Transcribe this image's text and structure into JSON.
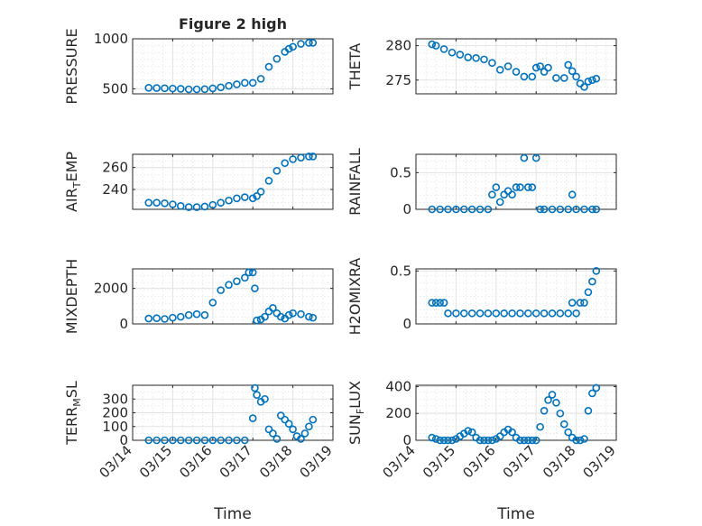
{
  "chart_data": [
    {
      "type": "scatter",
      "title": "Figure 2 high",
      "ylabel": "PRESSURE",
      "xlabel": "",
      "xlim": [
        0,
        5
      ],
      "ylim": [
        450,
        1000
      ],
      "yticks": [
        {
          "v": 500,
          "label": "500"
        },
        {
          "v": 1000,
          "label": "1000"
        }
      ],
      "xticks": [
        {
          "v": 0,
          "label": "03/14"
        },
        {
          "v": 1,
          "label": "03/15"
        },
        {
          "v": 2,
          "label": "03/16"
        },
        {
          "v": 3,
          "label": "03/17"
        },
        {
          "v": 4,
          "label": "03/18"
        },
        {
          "v": 5,
          "label": "03/19"
        }
      ],
      "grid": true,
      "marker_color": "#0072BD",
      "x": [
        0.4,
        0.6,
        0.8,
        1.0,
        1.2,
        1.4,
        1.6,
        1.8,
        2.0,
        2.2,
        2.4,
        2.6,
        2.8,
        3.0,
        3.2,
        3.4,
        3.6,
        3.8,
        3.9,
        4.0,
        4.2,
        4.4,
        4.5
      ],
      "y": [
        510,
        508,
        506,
        503,
        500,
        495,
        495,
        497,
        505,
        515,
        530,
        545,
        560,
        560,
        600,
        720,
        800,
        870,
        900,
        920,
        950,
        960,
        960
      ]
    },
    {
      "type": "scatter",
      "title": "",
      "ylabel": "THETA",
      "xlabel": "",
      "xlim": [
        0,
        5
      ],
      "ylim": [
        273,
        281
      ],
      "yticks": [
        {
          "v": 275,
          "label": "275"
        },
        {
          "v": 280,
          "label": "280"
        }
      ],
      "xticks": [
        {
          "v": 0,
          "label": "03/14"
        },
        {
          "v": 1,
          "label": "03/15"
        },
        {
          "v": 2,
          "label": "03/16"
        },
        {
          "v": 3,
          "label": "03/17"
        },
        {
          "v": 4,
          "label": "03/18"
        },
        {
          "v": 5,
          "label": "03/19"
        }
      ],
      "grid": true,
      "marker_color": "#0072BD",
      "x": [
        0.4,
        0.5,
        0.7,
        0.9,
        1.1,
        1.3,
        1.5,
        1.7,
        1.9,
        2.1,
        2.3,
        2.5,
        2.7,
        2.9,
        3.0,
        3.1,
        3.2,
        3.3,
        3.5,
        3.7,
        3.8,
        3.9,
        4.0,
        4.1,
        4.2,
        4.3,
        4.4,
        4.5
      ],
      "y": [
        280.2,
        280,
        279.5,
        279,
        278.7,
        278.3,
        278.2,
        278,
        277.5,
        276.5,
        277,
        276.2,
        275.5,
        275.5,
        276.8,
        277,
        276.2,
        276.8,
        275.3,
        275.3,
        277.2,
        276.3,
        275.5,
        274.5,
        274,
        274.8,
        275,
        275.2
      ]
    },
    {
      "type": "scatter",
      "title": "",
      "ylabel": "AIR_TEMP",
      "xlabel": "",
      "xlim": [
        0,
        5
      ],
      "ylim": [
        222,
        272
      ],
      "yticks": [
        {
          "v": 240,
          "label": "240"
        },
        {
          "v": 260,
          "label": "260"
        }
      ],
      "xticks": [
        {
          "v": 0,
          "label": "03/14"
        },
        {
          "v": 1,
          "label": "03/15"
        },
        {
          "v": 2,
          "label": "03/16"
        },
        {
          "v": 3,
          "label": "03/17"
        },
        {
          "v": 4,
          "label": "03/18"
        },
        {
          "v": 5,
          "label": "03/19"
        }
      ],
      "grid": true,
      "marker_color": "#0072BD",
      "x": [
        0.4,
        0.6,
        0.8,
        1.0,
        1.2,
        1.4,
        1.6,
        1.8,
        2.0,
        2.2,
        2.4,
        2.6,
        2.8,
        3.0,
        3.1,
        3.2,
        3.4,
        3.6,
        3.8,
        4.0,
        4.2,
        4.4,
        4.5
      ],
      "y": [
        228,
        228,
        227.5,
        226.5,
        225,
        224,
        224,
        224.5,
        226,
        228,
        230,
        232,
        233,
        232,
        234,
        238,
        248,
        257,
        264,
        267.5,
        269,
        270,
        270
      ]
    },
    {
      "type": "scatter",
      "title": "",
      "ylabel": "RAINFALL",
      "xlabel": "",
      "xlim": [
        0,
        5
      ],
      "ylim": [
        0,
        0.75
      ],
      "yticks": [
        {
          "v": 0,
          "label": "0"
        },
        {
          "v": 0.5,
          "label": "0.5"
        }
      ],
      "xticks": [
        {
          "v": 0,
          "label": "03/14"
        },
        {
          "v": 1,
          "label": "03/15"
        },
        {
          "v": 2,
          "label": "03/16"
        },
        {
          "v": 3,
          "label": "03/17"
        },
        {
          "v": 4,
          "label": "03/18"
        },
        {
          "v": 5,
          "label": "03/19"
        }
      ],
      "grid": true,
      "marker_color": "#0072BD",
      "x": [
        0.4,
        0.6,
        0.8,
        1.0,
        1.2,
        1.4,
        1.6,
        1.8,
        1.9,
        2.0,
        2.1,
        2.2,
        2.3,
        2.4,
        2.5,
        2.6,
        2.7,
        2.8,
        2.9,
        3.0,
        3.1,
        3.2,
        3.4,
        3.6,
        3.8,
        3.9,
        4.0,
        4.2,
        4.4,
        4.5
      ],
      "y": [
        0,
        0,
        0,
        0,
        0,
        0,
        0,
        0,
        0.2,
        0.3,
        0.1,
        0.2,
        0.25,
        0.2,
        0.3,
        0.3,
        0.7,
        0.3,
        0.3,
        0.7,
        0,
        0,
        0,
        0,
        0,
        0.2,
        0,
        0,
        0,
        0
      ]
    },
    {
      "type": "scatter",
      "title": "",
      "ylabel": "MIXDEPTH",
      "xlabel": "",
      "xlim": [
        0,
        5
      ],
      "ylim": [
        0,
        3100
      ],
      "yticks": [
        {
          "v": 0,
          "label": "0"
        },
        {
          "v": 2000,
          "label": "2000"
        }
      ],
      "xticks": [
        {
          "v": 0,
          "label": "03/14"
        },
        {
          "v": 1,
          "label": "03/15"
        },
        {
          "v": 2,
          "label": "03/16"
        },
        {
          "v": 3,
          "label": "03/17"
        },
        {
          "v": 4,
          "label": "03/18"
        },
        {
          "v": 5,
          "label": "03/19"
        }
      ],
      "grid": true,
      "marker_color": "#0072BD",
      "x": [
        0.4,
        0.6,
        0.8,
        1.0,
        1.2,
        1.4,
        1.6,
        1.8,
        2.0,
        2.2,
        2.4,
        2.6,
        2.8,
        2.9,
        3.0,
        3.05,
        3.1,
        3.2,
        3.3,
        3.4,
        3.5,
        3.6,
        3.7,
        3.8,
        3.9,
        4.0,
        4.2,
        4.4,
        4.5
      ],
      "y": [
        300,
        320,
        280,
        350,
        400,
        500,
        550,
        500,
        1200,
        1900,
        2200,
        2400,
        2600,
        2900,
        2900,
        2000,
        200,
        250,
        400,
        700,
        900,
        600,
        400,
        300,
        500,
        600,
        550,
        400,
        350
      ]
    },
    {
      "type": "scatter",
      "title": "",
      "ylabel": "H2OMIXRA",
      "xlabel": "",
      "xlim": [
        0,
        5
      ],
      "ylim": [
        0,
        0.52
      ],
      "yticks": [
        {
          "v": 0,
          "label": "0"
        },
        {
          "v": 0.5,
          "label": "0.5"
        }
      ],
      "xticks": [
        {
          "v": 0,
          "label": "03/14"
        },
        {
          "v": 1,
          "label": "03/15"
        },
        {
          "v": 2,
          "label": "03/16"
        },
        {
          "v": 3,
          "label": "03/17"
        },
        {
          "v": 4,
          "label": "03/18"
        },
        {
          "v": 5,
          "label": "03/19"
        }
      ],
      "grid": true,
      "marker_color": "#0072BD",
      "x": [
        0.4,
        0.5,
        0.6,
        0.7,
        0.8,
        1.0,
        1.2,
        1.4,
        1.6,
        1.8,
        2.0,
        2.2,
        2.4,
        2.6,
        2.8,
        3.0,
        3.2,
        3.4,
        3.6,
        3.8,
        3.9,
        4.0,
        4.1,
        4.2,
        4.3,
        4.4,
        4.5
      ],
      "y": [
        0.2,
        0.2,
        0.2,
        0.2,
        0.1,
        0.1,
        0.1,
        0.1,
        0.1,
        0.1,
        0.1,
        0.1,
        0.1,
        0.1,
        0.1,
        0.1,
        0.1,
        0.1,
        0.1,
        0.1,
        0.2,
        0.1,
        0.2,
        0.2,
        0.3,
        0.4,
        0.5
      ]
    },
    {
      "type": "scatter",
      "title": "",
      "ylabel": "TERR_MSL",
      "xlabel": "Time",
      "xlim": [
        0,
        5
      ],
      "ylim": [
        0,
        400
      ],
      "yticks": [
        {
          "v": 0,
          "label": "0"
        },
        {
          "v": 100,
          "label": "100"
        },
        {
          "v": 200,
          "label": "200"
        },
        {
          "v": 300,
          "label": "300"
        }
      ],
      "xticks": [
        {
          "v": 0,
          "label": "03/14"
        },
        {
          "v": 1,
          "label": "03/15"
        },
        {
          "v": 2,
          "label": "03/16"
        },
        {
          "v": 3,
          "label": "03/17"
        },
        {
          "v": 4,
          "label": "03/18"
        },
        {
          "v": 5,
          "label": "03/19"
        }
      ],
      "grid": true,
      "marker_color": "#0072BD",
      "x": [
        0.4,
        0.6,
        0.8,
        1.0,
        1.2,
        1.4,
        1.6,
        1.8,
        2.0,
        2.2,
        2.4,
        2.6,
        2.8,
        3.0,
        3.05,
        3.1,
        3.2,
        3.3,
        3.4,
        3.5,
        3.6,
        3.7,
        3.8,
        3.9,
        4.0,
        4.1,
        4.2,
        4.3,
        4.4,
        4.5
      ],
      "y": [
        0,
        0,
        0,
        0,
        0,
        0,
        0,
        0,
        0,
        0,
        0,
        0,
        0,
        160,
        380,
        330,
        280,
        300,
        80,
        50,
        10,
        180,
        150,
        120,
        80,
        30,
        10,
        50,
        100,
        150
      ]
    },
    {
      "type": "scatter",
      "title": "",
      "ylabel": "SUN_FLUX",
      "xlabel": "Time",
      "xlim": [
        0,
        5
      ],
      "ylim": [
        0,
        410
      ],
      "yticks": [
        {
          "v": 0,
          "label": "0"
        },
        {
          "v": 200,
          "label": "200"
        },
        {
          "v": 400,
          "label": "400"
        }
      ],
      "xticks": [
        {
          "v": 0,
          "label": "03/14"
        },
        {
          "v": 1,
          "label": "03/15"
        },
        {
          "v": 2,
          "label": "03/16"
        },
        {
          "v": 3,
          "label": "03/17"
        },
        {
          "v": 4,
          "label": "03/18"
        },
        {
          "v": 5,
          "label": "03/19"
        }
      ],
      "grid": true,
      "marker_color": "#0072BD",
      "x": [
        0.4,
        0.5,
        0.6,
        0.7,
        0.8,
        0.9,
        1.0,
        1.1,
        1.2,
        1.3,
        1.4,
        1.5,
        1.6,
        1.7,
        1.8,
        1.9,
        2.0,
        2.1,
        2.2,
        2.3,
        2.4,
        2.5,
        2.6,
        2.7,
        2.8,
        2.9,
        3.0,
        3.1,
        3.2,
        3.3,
        3.4,
        3.5,
        3.6,
        3.7,
        3.8,
        3.9,
        4.0,
        4.1,
        4.2,
        4.3,
        4.4,
        4.5
      ],
      "y": [
        20,
        10,
        0,
        0,
        0,
        0,
        10,
        30,
        50,
        70,
        60,
        20,
        0,
        0,
        0,
        0,
        10,
        30,
        60,
        80,
        60,
        20,
        0,
        0,
        0,
        0,
        0,
        100,
        220,
        300,
        340,
        280,
        200,
        120,
        60,
        20,
        0,
        0,
        10,
        220,
        350,
        390
      ]
    }
  ]
}
